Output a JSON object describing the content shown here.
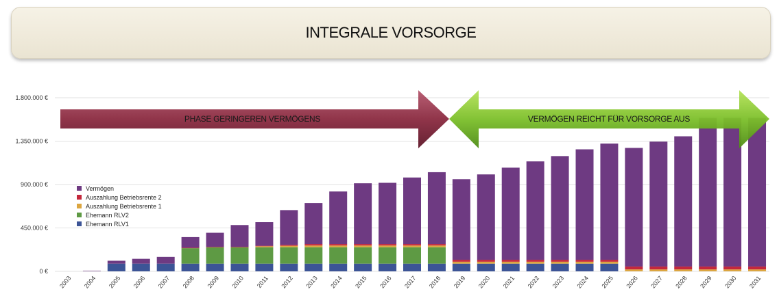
{
  "header": {
    "title": "INTEGRALE VORSORGE"
  },
  "arrows": {
    "left_label": "PHASE GERINGEREN VERMÖGENS",
    "right_label": "VERMÖGEN REICHT FÜR VORSORGE AUS",
    "left_color": "#8a2a40",
    "right_color": "#7cbf2a"
  },
  "chart_data": {
    "type": "bar",
    "stacked": true,
    "categories": [
      "2003",
      "2004",
      "2005",
      "2006",
      "2007",
      "2008",
      "2009",
      "2010",
      "2011",
      "2012",
      "2013",
      "2014",
      "2015",
      "2016",
      "2017",
      "2018",
      "2019",
      "2020",
      "2021",
      "2022",
      "2023",
      "2024",
      "2025",
      "2026",
      "2027",
      "2028",
      "2029",
      "2030",
      "2031"
    ],
    "series": [
      {
        "name": "Ehemann RLV1",
        "color": "#3c5496",
        "values": [
          0,
          0,
          80000,
          80000,
          80000,
          80000,
          80000,
          80000,
          80000,
          80000,
          80000,
          80000,
          80000,
          80000,
          80000,
          80000,
          80000,
          80000,
          80000,
          80000,
          80000,
          80000,
          80000,
          0,
          0,
          0,
          0,
          0,
          0
        ]
      },
      {
        "name": "Ehemann RLV2",
        "color": "#5e9a44",
        "values": [
          0,
          0,
          0,
          0,
          0,
          160000,
          170000,
          170000,
          170000,
          170000,
          170000,
          170000,
          170000,
          170000,
          170000,
          170000,
          0,
          0,
          0,
          0,
          0,
          0,
          0,
          0,
          0,
          0,
          0,
          0,
          0
        ]
      },
      {
        "name": "Auszahlung Betriebsrente 1",
        "color": "#dca640",
        "values": [
          0,
          0,
          0,
          0,
          0,
          0,
          0,
          0,
          10000,
          15000,
          18000,
          18000,
          18000,
          18000,
          18000,
          18000,
          20000,
          20000,
          20000,
          20000,
          20000,
          20000,
          20000,
          20000,
          20000,
          20000,
          20000,
          20000,
          20000
        ]
      },
      {
        "name": "Auszahlung Betriebsrente 2",
        "color": "#c4283c",
        "values": [
          0,
          0,
          0,
          0,
          0,
          5000,
          5000,
          5000,
          5000,
          10000,
          15000,
          15000,
          15000,
          15000,
          15000,
          15000,
          20000,
          20000,
          20000,
          20000,
          20000,
          20000,
          20000,
          30000,
          30000,
          30000,
          30000,
          30000,
          30000
        ]
      },
      {
        "name": "Vermögen",
        "color": "#6e3a82",
        "values": [
          0,
          5000,
          30000,
          50000,
          70000,
          110000,
          145000,
          225000,
          245000,
          360000,
          425000,
          545000,
          630000,
          635000,
          690000,
          745000,
          835000,
          885000,
          955000,
          1020000,
          1075000,
          1145000,
          1205000,
          1230000,
          1295000,
          1350000,
          1540000,
          1540000,
          1540000
        ]
      }
    ],
    "y_ticks": [
      "1.800.000 €",
      "1.350.000 €",
      "900.000 €",
      "450.000 €",
      "0 €"
    ],
    "ylim": [
      0,
      1800000
    ],
    "legend_position": "left, inside plot",
    "grid": true
  }
}
